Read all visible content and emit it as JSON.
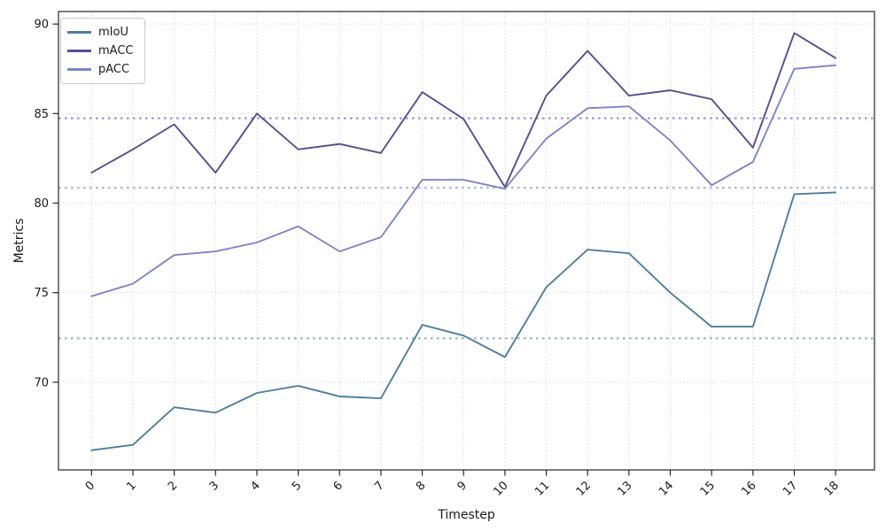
{
  "chart_data": {
    "type": "line",
    "title": "",
    "xlabel": "Timestep",
    "ylabel": "Metrics",
    "x": [
      0,
      1,
      2,
      3,
      4,
      5,
      6,
      7,
      8,
      9,
      10,
      11,
      12,
      13,
      14,
      15,
      16,
      17,
      18
    ],
    "xtick_labels": [
      "0",
      "1",
      "2",
      "3",
      "4",
      "5",
      "6",
      "7",
      "8",
      "9",
      "10",
      "11",
      "12",
      "13",
      "14",
      "15",
      "16",
      "17",
      "18"
    ],
    "yticks": [
      70,
      75,
      80,
      85,
      90
    ],
    "xlim": [
      -0.8,
      18.94
    ],
    "ylim": [
      65.1,
      90.7
    ],
    "grid": true,
    "grid_style": "dotted",
    "legend_position": "upper-left",
    "series": [
      {
        "name": "mIoU",
        "color": "#4e7e9d",
        "mean_line_color": "#8fb0c9",
        "values": [
          66.2,
          66.5,
          68.6,
          68.3,
          69.4,
          69.8,
          69.2,
          69.1,
          73.2,
          72.6,
          71.4,
          75.3,
          77.4,
          77.2,
          75.0,
          73.1,
          73.1,
          80.5,
          80.6
        ]
      },
      {
        "name": "mACC",
        "color": "#574e8d",
        "mean_line_color": "#9b95ce",
        "values": [
          81.7,
          83.0,
          84.4,
          81.7,
          85.0,
          83.0,
          83.3,
          82.8,
          86.2,
          84.7,
          80.9,
          86.0,
          88.5,
          86.0,
          86.3,
          85.8,
          83.1,
          89.5,
          88.1
        ]
      },
      {
        "name": "pACC",
        "color": "#7b86c7",
        "mean_line_color": "#abb4e0",
        "values": [
          74.8,
          75.5,
          77.1,
          77.3,
          77.8,
          78.7,
          77.3,
          78.1,
          81.3,
          81.3,
          80.8,
          83.6,
          85.3,
          85.4,
          83.5,
          81.0,
          82.3,
          87.5,
          87.7
        ]
      }
    ]
  }
}
